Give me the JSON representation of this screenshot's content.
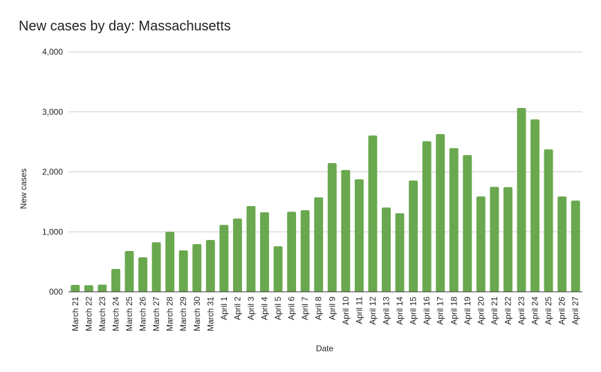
{
  "chart_data": {
    "type": "bar",
    "title": "New cases by day: Massachusetts",
    "xlabel": "Date",
    "ylabel": "New cases",
    "ylim": [
      0,
      4000
    ],
    "yticks": [
      0,
      1000,
      2000,
      3000,
      4000
    ],
    "ytick_labels": [
      "000",
      "1,000",
      "2,000",
      "3,000",
      "4,000"
    ],
    "grid": true,
    "bar_color": "#6aa84f",
    "categories": [
      "March 21",
      "March 22",
      "March 23",
      "March 24",
      "March 25",
      "March 26",
      "March 27",
      "March 28",
      "March 29",
      "March 30",
      "March 31",
      "April 1",
      "April 2",
      "April 3",
      "April 4",
      "April 5",
      "April 6",
      "April 7",
      "April 8",
      "April 9",
      "April 10",
      "April 11",
      "April 12",
      "April 13",
      "April 14",
      "April 15",
      "April 16",
      "April 17",
      "April 18",
      "April 19",
      "April 20",
      "April 21",
      "April 22",
      "April 23",
      "April 24",
      "April 25",
      "April 26",
      "April 27"
    ],
    "values": [
      115,
      110,
      120,
      380,
      680,
      575,
      825,
      1000,
      690,
      795,
      865,
      1115,
      1220,
      1430,
      1325,
      760,
      1335,
      1360,
      1575,
      2145,
      2030,
      1875,
      2605,
      1405,
      1310,
      1855,
      2510,
      2630,
      2395,
      2280,
      1590,
      1750,
      1745,
      3065,
      2875,
      2375,
      1590,
      1520
    ]
  }
}
